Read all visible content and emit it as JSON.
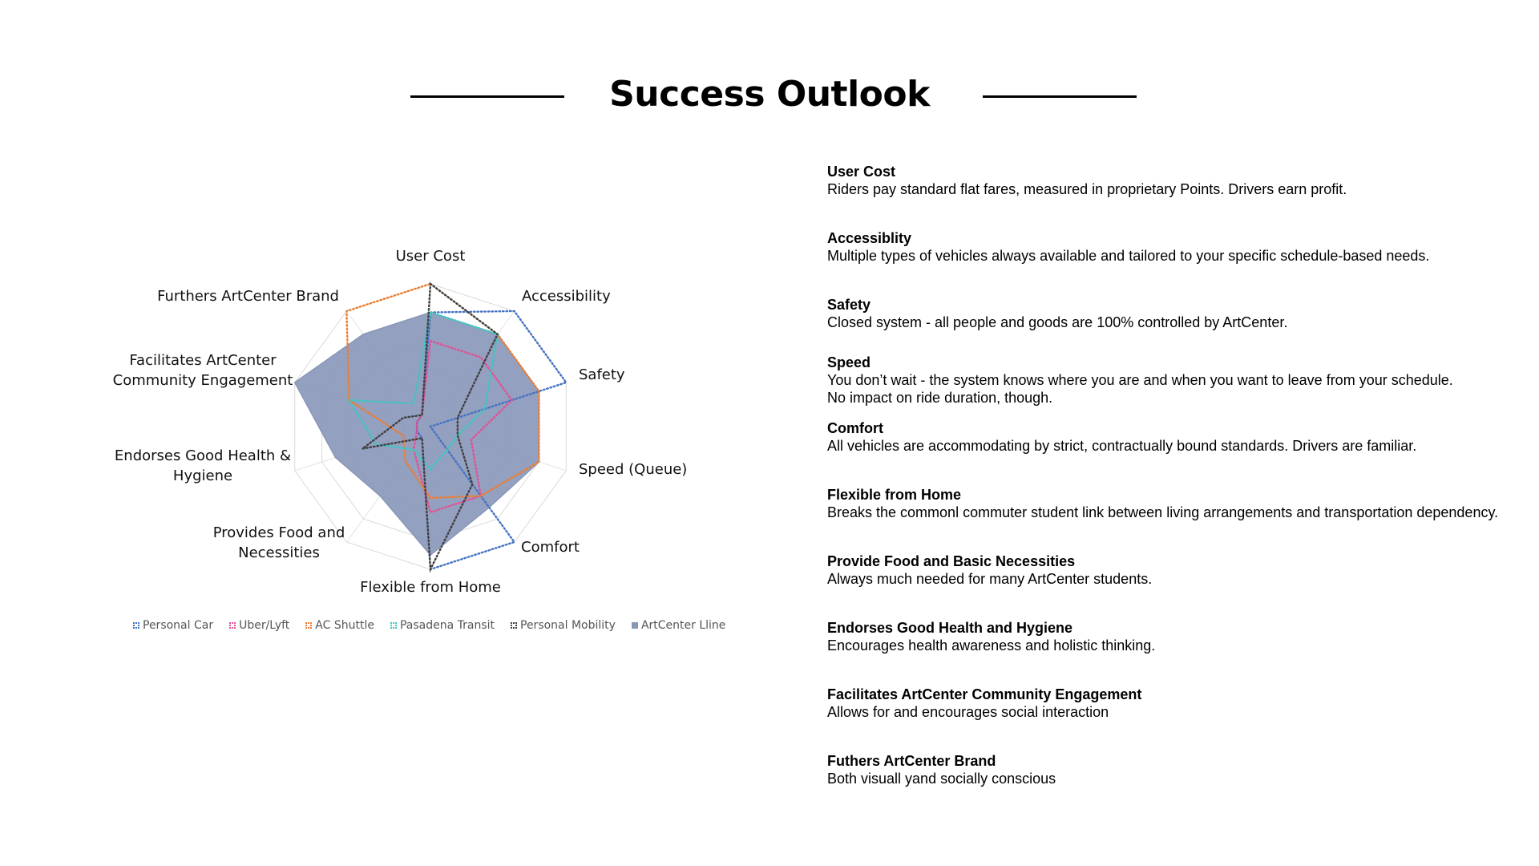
{
  "slide": {
    "title": "Success Outlook"
  },
  "descriptions": [
    {
      "head": "User Cost",
      "body": "Riders pay standard flat fares, measured in proprietary Points. Drivers earn profit."
    },
    {
      "head": "Accessiblity",
      "body": "Multiple types of vehicles always available and tailored to your specific schedule-based needs."
    },
    {
      "head": "Safety",
      "body": "Closed system - all people and goods are 100% controlled by ArtCenter."
    },
    {
      "head": "Speed",
      "body": "You don’t wait - the system knows where you are and when you want to leave from your schedule.\nNo impact on  ride duration, though."
    },
    {
      "head": "Comfort",
      "body": "All vehicles are accommodating by strict, contractually bound standards. Drivers are familiar."
    },
    {
      "head": "Flexible from Home",
      "body": "Breaks the commonl commuter student link between living arrangements and transportation dependency."
    },
    {
      "head": "Provide Food and Basic Necessities",
      "body": "Always much needed for many ArtCenter students."
    },
    {
      "head": "Endorses Good Health and Hygiene",
      "body": "Encourages health awareness and holistic thinking."
    },
    {
      "head": "Facilitates ArtCenter Community Engagement",
      "body": "Allows for and encourages social interaction"
    },
    {
      "head": "Futhers ArtCenter Brand",
      "body": "Both visuall yand socially conscious"
    }
  ],
  "chart_data": {
    "type": "radar",
    "rmax": 10,
    "gridlines": true,
    "legend_position": "bottom",
    "axes": [
      "User Cost",
      "Accessibility",
      "Safety",
      "Speed (Queue)",
      "Comfort",
      "Flexible from Home",
      "Provides Food and Necessities",
      "Endorses Good Health & Hygiene",
      "Facilitates ArtCenter Community Engagement",
      "Furthers ArtCenter Brand"
    ],
    "series": [
      {
        "name": "Personal Car",
        "color": "#4472C4",
        "style": "dotted",
        "values": [
          8,
          10,
          10,
          0,
          10,
          10,
          1,
          1,
          1,
          1
        ]
      },
      {
        "name": "Uber/Lyft",
        "color": "#E05297",
        "style": "dotted",
        "values": [
          6,
          6,
          6,
          3,
          6,
          6,
          2,
          1,
          1,
          1
        ]
      },
      {
        "name": "AC Shuttle",
        "color": "#ED7D31",
        "style": "dotted",
        "values": [
          10,
          8,
          8,
          8,
          6,
          5,
          3,
          2,
          6,
          10
        ]
      },
      {
        "name": "Pasadena Transit",
        "color": "#3EC6C1",
        "style": "dotted",
        "values": [
          8,
          8,
          4,
          2,
          2,
          3,
          2,
          4,
          6,
          2
        ]
      },
      {
        "name": "Personal Mobility",
        "color": "#404040",
        "style": "dotted",
        "values": [
          10,
          8,
          2,
          2,
          5,
          10,
          1,
          5,
          2,
          1
        ]
      },
      {
        "name": "ArtCenter Lline",
        "color": "#8896B8",
        "style": "filled",
        "values": [
          8,
          8,
          8,
          8,
          7,
          9,
          6,
          7,
          10,
          8
        ]
      }
    ]
  }
}
